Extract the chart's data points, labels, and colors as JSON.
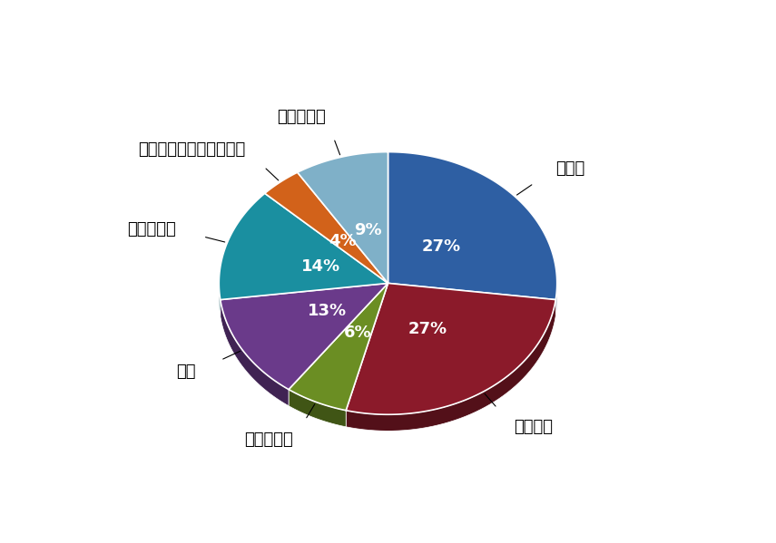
{
  "labels": [
    "咽頭炎",
    "気管支炎",
    "気管支肺炎",
    "肺炎",
    "尿路感染症",
    "ヘルペスウイルス感染症",
    "皮膚感染症"
  ],
  "values": [
    27,
    27,
    6,
    13,
    14,
    4,
    9
  ],
  "colors": [
    "#2E5FA3",
    "#8B1A2A",
    "#6B8E23",
    "#6A3A8A",
    "#1A8FA0",
    "#D2621A",
    "#7FB0C8"
  ],
  "pct_labels": [
    "27%",
    "27%",
    "6%",
    "13%",
    "14%",
    "4%",
    "9%"
  ],
  "background_color": "#FFFFFF",
  "label_fontsize": 13,
  "pct_fontsize": 13,
  "startangle": 90,
  "shadow": true
}
